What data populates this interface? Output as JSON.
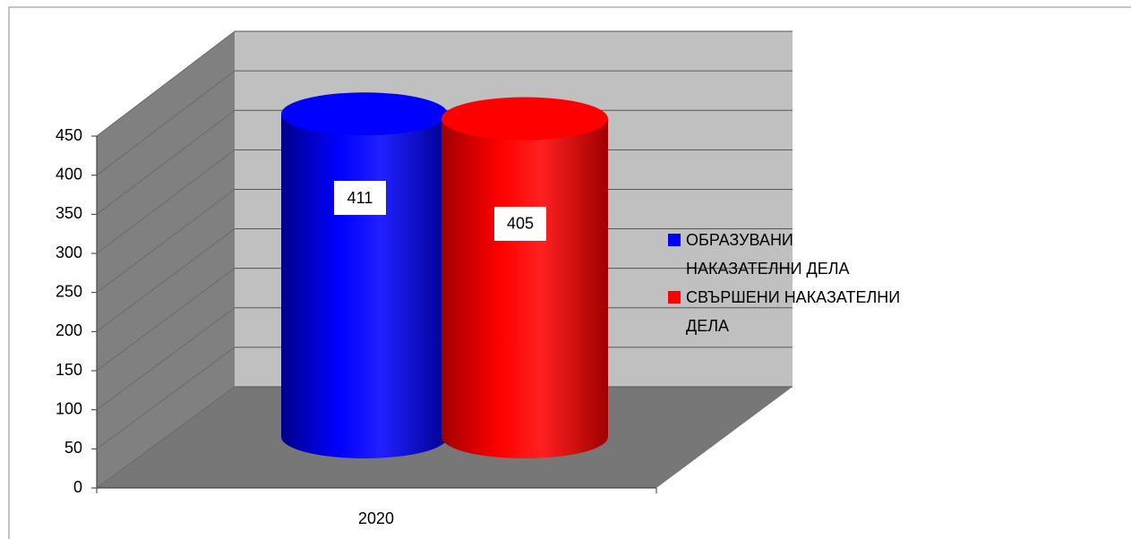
{
  "chart_data": {
    "type": "bar",
    "categories": [
      "2020"
    ],
    "series": [
      {
        "name": "ОБРАЗУВАНИ НАКАЗАТЕЛНИ ДЕЛА",
        "color": "#0000ff",
        "values": [
          411
        ]
      },
      {
        "name": "СВЪРШЕНИ НАКАЗАТЕЛНИ ДЕЛА",
        "color": "#ff0000",
        "values": [
          405
        ]
      }
    ],
    "ylim": [
      0,
      450
    ],
    "yticks": [
      0,
      50,
      100,
      150,
      200,
      250,
      300,
      350,
      400,
      450
    ],
    "grid": true,
    "legend": "right"
  }
}
